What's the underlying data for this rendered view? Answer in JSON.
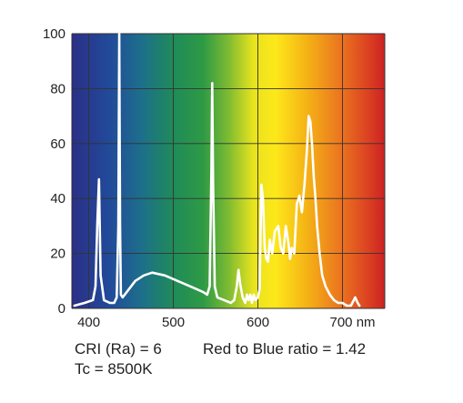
{
  "chart_data": {
    "type": "line",
    "title": "",
    "xlabel": "",
    "ylabel": "",
    "x_unit": "nm",
    "xlim": [
      380,
      750
    ],
    "ylim": [
      0,
      100
    ],
    "x_ticks": [
      400,
      500,
      600,
      700
    ],
    "y_ticks": [
      0,
      20,
      40,
      60,
      80,
      100
    ],
    "grid": true,
    "background": "visible-spectrum color gradient (violet to red)",
    "line_color": "#ffffff",
    "series": [
      {
        "x": [
          383,
          395,
          405,
          408,
          410,
          412,
          414,
          418,
          425,
          430,
          433,
          435,
          436,
          437,
          438,
          440,
          445,
          455,
          465,
          475,
          490,
          505,
          520,
          535,
          540,
          543,
          545,
          546,
          547,
          549,
          552,
          560,
          568,
          572,
          575,
          577,
          579,
          582,
          585,
          587,
          589,
          591,
          593,
          595,
          597,
          600,
          602,
          604,
          606,
          608,
          610,
          612,
          614,
          617,
          620,
          624,
          627,
          630,
          633,
          636,
          638,
          640,
          643,
          646,
          649,
          652,
          655,
          658,
          660,
          662,
          664,
          666,
          668,
          670,
          673,
          676,
          680,
          685,
          690,
          695,
          700,
          705,
          710,
          715,
          718,
          720
        ],
        "y": [
          1,
          2,
          3,
          8,
          30,
          47,
          12,
          3,
          2,
          2,
          4,
          30,
          100,
          30,
          5,
          4,
          6,
          10,
          12,
          13,
          12,
          10,
          8,
          6,
          5,
          8,
          50,
          82,
          45,
          8,
          4,
          3,
          2,
          3,
          8,
          14,
          9,
          4,
          2,
          5,
          3,
          5,
          2,
          5,
          3,
          4,
          7,
          45,
          40,
          22,
          18,
          17,
          25,
          20,
          28,
          30,
          22,
          20,
          30,
          24,
          18,
          22,
          20,
          38,
          41,
          35,
          45,
          58,
          70,
          68,
          60,
          48,
          40,
          30,
          20,
          12,
          8,
          5,
          3,
          2,
          2,
          1,
          1,
          4,
          2,
          1
        ]
      }
    ]
  },
  "info": {
    "cri": "CRI (Ra) = 6",
    "tc": "Tc = 8500K",
    "ratio": "Red to Blue ratio = 1.42"
  },
  "x_tick_labels": [
    "400",
    "500",
    "600",
    "700 nm"
  ],
  "y_tick_labels": [
    "0",
    "20",
    "40",
    "60",
    "80",
    "100"
  ]
}
